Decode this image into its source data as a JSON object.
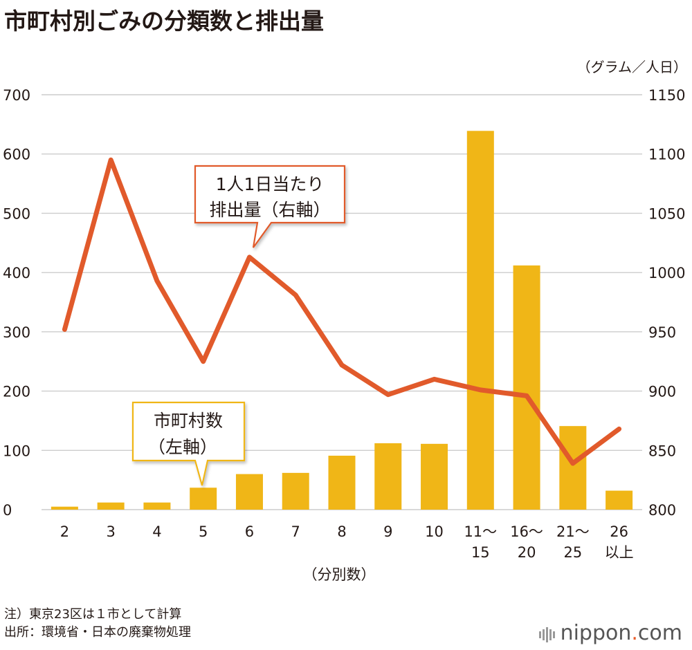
{
  "title": "市町村別ごみの分類数と排出量",
  "note_lines": [
    "注）東京23区は１市として計算",
    "出所：環境省・日本の廃棄物処理"
  ],
  "brand": {
    "name": "nippon",
    "dot": ".",
    "suffix": "com"
  },
  "colors": {
    "bar": "#F0B617",
    "line": "#E15A2B",
    "grid": "#CCCCCC",
    "callout_line_border": "#E15A2B",
    "callout_bar_border": "#F0B617"
  },
  "chart_data": {
    "type": "bar+line",
    "categories": [
      [
        "2"
      ],
      [
        "3"
      ],
      [
        "4"
      ],
      [
        "5"
      ],
      [
        "6"
      ],
      [
        "7"
      ],
      [
        "8"
      ],
      [
        "9"
      ],
      [
        "10"
      ],
      [
        "11～",
        "15"
      ],
      [
        "16～",
        "20"
      ],
      [
        "21～",
        "25"
      ],
      [
        "26",
        "以上"
      ]
    ],
    "xlabel": "（分別数）",
    "left_axis": {
      "ylim": [
        0,
        700
      ],
      "ticks": [
        0,
        100,
        200,
        300,
        400,
        500,
        600,
        700
      ]
    },
    "right_axis": {
      "unit": "（グラム／人日）",
      "ylim": [
        800,
        1150
      ],
      "ticks": [
        800,
        850,
        900,
        950,
        1000,
        1050,
        1100,
        1150
      ]
    },
    "series": [
      {
        "name": "市町村数（左軸）",
        "type": "bar",
        "axis": "left",
        "values": [
          5,
          12,
          12,
          37,
          60,
          62,
          91,
          112,
          111,
          639,
          412,
          141,
          32
        ]
      },
      {
        "name": "1人1日当たり排出量（右軸）",
        "type": "line",
        "axis": "right",
        "values": [
          952,
          1095,
          993,
          925,
          1013,
          981,
          922,
          897,
          910,
          901,
          896,
          839,
          868
        ]
      }
    ],
    "callouts": {
      "line": [
        "1人1日当たり",
        "排出量（右軸）"
      ],
      "bar": [
        "市町村数",
        "（左軸）"
      ]
    },
    "grid": true
  }
}
